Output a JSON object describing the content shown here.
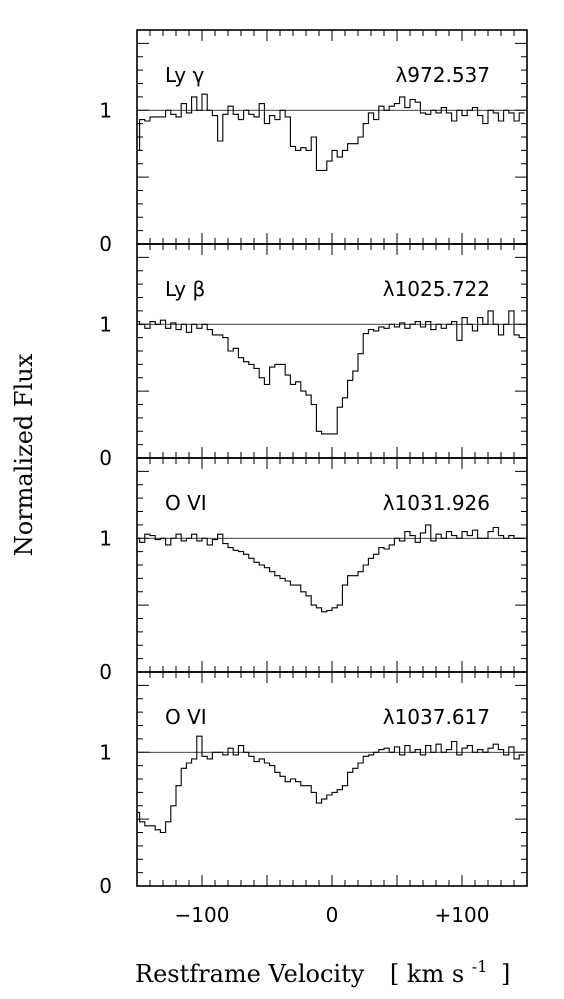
{
  "chart_data": {
    "type": "line",
    "ylabel": "Normalized Flux",
    "xlabel": "Restframe Velocity",
    "xunit": "[ km s",
    "xunit_exp": "-1",
    "xunit_close": "]",
    "xlim": [
      -150,
      150
    ],
    "ylim": [
      0,
      1.6
    ],
    "continuum": 1,
    "y_tick_labels": [
      "0",
      "1"
    ],
    "x_ticks": [
      -100,
      0,
      100
    ],
    "x_tick_labels": [
      "−100",
      "0",
      "+100"
    ],
    "grid": false,
    "panels": [
      {
        "line": "Ly γ",
        "wavelength": "λ972.537",
        "x": [
          -150,
          -146,
          -142,
          -138,
          -134,
          -130,
          -126,
          -122,
          -118,
          -114,
          -110,
          -106,
          -102,
          -98,
          -94,
          -90,
          -86,
          -82,
          -78,
          -74,
          -70,
          -66,
          -62,
          -58,
          -54,
          -50,
          -46,
          -42,
          -38,
          -34,
          -30,
          -26,
          -22,
          -18,
          -14,
          -10,
          -6,
          -2,
          2,
          6,
          10,
          14,
          18,
          22,
          26,
          30,
          34,
          38,
          42,
          46,
          50,
          54,
          58,
          62,
          66,
          70,
          74,
          78,
          82,
          86,
          90,
          94,
          98,
          102,
          106,
          110,
          114,
          118,
          122,
          126,
          130,
          134,
          138,
          142,
          146
        ],
        "y": [
          0.7,
          0.93,
          0.92,
          0.95,
          0.95,
          0.95,
          1.0,
          0.97,
          0.95,
          1.05,
          0.98,
          1.1,
          1.0,
          1.12,
          1.0,
          0.96,
          0.77,
          0.97,
          1.03,
          0.97,
          0.93,
          1.0,
          0.97,
          0.95,
          1.05,
          0.9,
          0.96,
          0.93,
          1.0,
          0.95,
          0.73,
          0.7,
          0.72,
          0.7,
          0.8,
          0.55,
          0.55,
          0.62,
          0.7,
          0.65,
          0.7,
          0.75,
          0.75,
          0.8,
          0.9,
          0.98,
          0.93,
          1.03,
          1.0,
          1.03,
          1.05,
          1.1,
          1.02,
          1.08,
          1.06,
          0.98,
          0.97,
          1.0,
          0.98,
          1.02,
          0.98,
          0.92,
          1.0,
          0.96,
          1.0,
          1.02,
          0.96,
          0.9,
          1.0,
          0.98,
          0.92,
          1.0,
          0.98,
          0.92,
          0.98
        ]
      },
      {
        "line": "Ly β",
        "wavelength": "λ1025.722",
        "x": [
          -150,
          -146,
          -142,
          -138,
          -134,
          -130,
          -126,
          -122,
          -118,
          -114,
          -110,
          -106,
          -102,
          -98,
          -94,
          -90,
          -86,
          -82,
          -78,
          -74,
          -70,
          -66,
          -62,
          -58,
          -54,
          -50,
          -46,
          -42,
          -38,
          -34,
          -30,
          -26,
          -22,
          -18,
          -14,
          -10,
          -6,
          -2,
          2,
          6,
          10,
          14,
          18,
          22,
          26,
          30,
          34,
          38,
          42,
          46,
          50,
          54,
          58,
          62,
          66,
          70,
          74,
          78,
          82,
          86,
          90,
          94,
          98,
          102,
          106,
          110,
          114,
          118,
          122,
          126,
          130,
          134,
          138,
          142,
          146
        ],
        "y": [
          1.02,
          1.0,
          0.97,
          1.02,
          1.0,
          1.03,
          0.97,
          1.01,
          0.96,
          1.0,
          0.94,
          1.0,
          0.97,
          1.0,
          0.96,
          0.92,
          0.92,
          0.9,
          0.8,
          0.82,
          0.75,
          0.72,
          0.7,
          0.67,
          0.6,
          0.55,
          0.68,
          0.7,
          0.7,
          0.62,
          0.55,
          0.57,
          0.5,
          0.47,
          0.4,
          0.2,
          0.18,
          0.18,
          0.18,
          0.38,
          0.45,
          0.58,
          0.65,
          0.78,
          0.93,
          0.96,
          0.95,
          0.98,
          0.97,
          1.0,
          0.98,
          1.01,
          0.97,
          1.0,
          1.02,
          0.98,
          1.02,
          0.96,
          1.0,
          0.97,
          1.0,
          1.02,
          0.88,
          1.05,
          1.0,
          0.95,
          1.05,
          1.0,
          1.1,
          1.0,
          0.92,
          1.0,
          1.1,
          0.92,
          0.9
        ]
      },
      {
        "line": "O  VI",
        "wavelength": "λ1031.926",
        "x": [
          -150,
          -146,
          -142,
          -138,
          -134,
          -130,
          -126,
          -122,
          -118,
          -114,
          -110,
          -106,
          -102,
          -98,
          -94,
          -90,
          -86,
          -82,
          -78,
          -74,
          -70,
          -66,
          -62,
          -58,
          -54,
          -50,
          -46,
          -42,
          -38,
          -34,
          -30,
          -26,
          -22,
          -18,
          -14,
          -10,
          -6,
          -2,
          2,
          6,
          10,
          14,
          18,
          22,
          26,
          30,
          34,
          38,
          42,
          46,
          50,
          54,
          58,
          62,
          66,
          70,
          74,
          78,
          82,
          86,
          90,
          94,
          98,
          102,
          106,
          110,
          114,
          118,
          122,
          126,
          130,
          134,
          138,
          142,
          146
        ],
        "y": [
          1.0,
          0.97,
          1.03,
          1.02,
          0.99,
          1.0,
          0.95,
          1.0,
          1.03,
          0.98,
          1.0,
          1.03,
          0.98,
          1.0,
          0.95,
          0.99,
          1.03,
          0.96,
          0.93,
          0.91,
          0.9,
          0.88,
          0.85,
          0.82,
          0.8,
          0.78,
          0.75,
          0.72,
          0.7,
          0.68,
          0.65,
          0.65,
          0.6,
          0.57,
          0.5,
          0.48,
          0.45,
          0.46,
          0.48,
          0.5,
          0.65,
          0.72,
          0.72,
          0.75,
          0.8,
          0.85,
          0.88,
          0.93,
          0.92,
          0.95,
          1.0,
          0.98,
          1.05,
          1.02,
          0.97,
          1.04,
          1.1,
          0.98,
          1.03,
          1.0,
          1.05,
          1.02,
          1.0,
          1.05,
          1.02,
          1.06,
          1.0,
          1.0,
          1.05,
          1.08,
          1.02,
          1.0,
          1.02,
          1.0,
          1.0
        ]
      },
      {
        "line": "O  VI",
        "wavelength": "λ1037.617",
        "x": [
          -150,
          -146,
          -142,
          -138,
          -134,
          -130,
          -126,
          -122,
          -118,
          -114,
          -110,
          -106,
          -102,
          -98,
          -94,
          -90,
          -86,
          -82,
          -78,
          -74,
          -70,
          -66,
          -62,
          -58,
          -54,
          -50,
          -46,
          -42,
          -38,
          -34,
          -30,
          -26,
          -22,
          -18,
          -14,
          -10,
          -6,
          -2,
          2,
          6,
          10,
          14,
          18,
          22,
          26,
          30,
          34,
          38,
          42,
          46,
          50,
          54,
          58,
          62,
          66,
          70,
          74,
          78,
          82,
          86,
          90,
          94,
          98,
          102,
          106,
          110,
          114,
          118,
          122,
          126,
          130,
          134,
          138,
          142,
          146
        ],
        "y": [
          0.55,
          0.48,
          0.45,
          0.45,
          0.42,
          0.4,
          0.48,
          0.6,
          0.75,
          0.88,
          0.92,
          0.95,
          1.12,
          0.97,
          0.95,
          1.0,
          1.0,
          0.98,
          1.03,
          0.98,
          1.05,
          1.0,
          0.97,
          0.93,
          0.95,
          0.92,
          0.9,
          0.85,
          0.82,
          0.78,
          0.8,
          0.78,
          0.75,
          0.75,
          0.7,
          0.62,
          0.65,
          0.68,
          0.7,
          0.72,
          0.75,
          0.85,
          0.88,
          0.92,
          0.97,
          0.98,
          1.0,
          1.02,
          1.03,
          1.0,
          1.04,
          0.98,
          1.05,
          1.0,
          1.02,
          0.98,
          1.05,
          1.0,
          1.06,
          1.0,
          1.02,
          1.08,
          0.98,
          1.03,
          1.05,
          1.0,
          1.02,
          1.0,
          1.03,
          1.06,
          1.02,
          0.98,
          1.04,
          0.95,
          0.98
        ]
      }
    ]
  }
}
